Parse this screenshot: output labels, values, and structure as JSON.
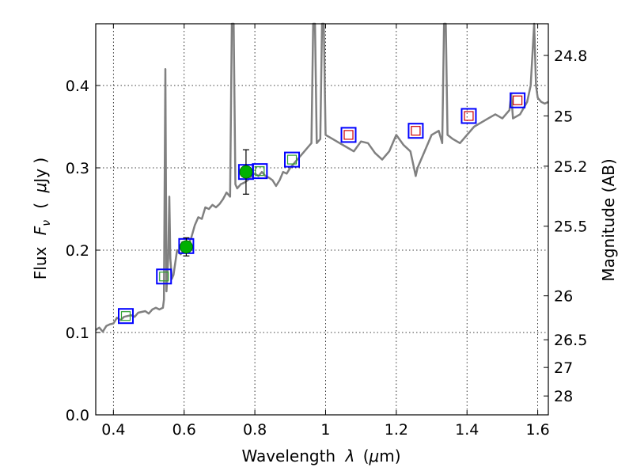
{
  "chart_data": {
    "type": "scatter",
    "xlabel_text": "Wavelength",
    "xlabel_symbol": "λ",
    "xlabel_unit_open": "(",
    "xlabel_unit_mu": "μ",
    "xlabel_unit_rest": "m)",
    "ylabel_text": "Flux",
    "ylabel_symbol": "F",
    "ylabel_subscript": "ν",
    "ylabel_unit_open": "(",
    "ylabel_unit_mu": "μ",
    "ylabel_unit_rest": "Jy )",
    "y2label": "Magnitude (AB)",
    "xlim": [
      0.35,
      1.63
    ],
    "ylim": [
      0.0,
      0.475
    ],
    "grid": true,
    "x_ticks": [
      {
        "value": 0.4,
        "label": "0.4"
      },
      {
        "value": 0.6,
        "label": "0.6"
      },
      {
        "value": 0.8,
        "label": "0.8"
      },
      {
        "value": 1.0,
        "label": "1"
      },
      {
        "value": 1.2,
        "label": "1.2"
      },
      {
        "value": 1.4,
        "label": "1.4"
      },
      {
        "value": 1.6,
        "label": "1.6"
      }
    ],
    "y_ticks": [
      {
        "value": 0.0,
        "label": "0.0"
      },
      {
        "value": 0.1,
        "label": "0.1"
      },
      {
        "value": 0.2,
        "label": "0.2"
      },
      {
        "value": 0.3,
        "label": "0.3"
      },
      {
        "value": 0.4,
        "label": "0.4"
      }
    ],
    "mag_ticks": [
      {
        "value": 24.8,
        "label": "24.8"
      },
      {
        "value": 25.0,
        "label": "25"
      },
      {
        "value": 25.2,
        "label": "25.2"
      },
      {
        "value": 25.5,
        "label": "25.5"
      },
      {
        "value": 26.0,
        "label": "26"
      },
      {
        "value": 26.5,
        "label": "26.5"
      },
      {
        "value": 27.0,
        "label": "27"
      },
      {
        "value": 28.0,
        "label": "28"
      }
    ],
    "series": [
      {
        "kind": "spectrum",
        "color": "#808080",
        "points": [
          [
            0.35,
            0.103
          ],
          [
            0.36,
            0.106
          ],
          [
            0.37,
            0.101
          ],
          [
            0.38,
            0.108
          ],
          [
            0.39,
            0.11
          ],
          [
            0.4,
            0.111
          ],
          [
            0.41,
            0.118
          ],
          [
            0.42,
            0.115
          ],
          [
            0.43,
            0.119
          ],
          [
            0.44,
            0.12
          ],
          [
            0.45,
            0.121
          ],
          [
            0.46,
            0.119
          ],
          [
            0.47,
            0.124
          ],
          [
            0.48,
            0.125
          ],
          [
            0.49,
            0.126
          ],
          [
            0.5,
            0.123
          ],
          [
            0.51,
            0.128
          ],
          [
            0.52,
            0.13
          ],
          [
            0.53,
            0.128
          ],
          [
            0.54,
            0.13
          ],
          [
            0.543,
            0.14
          ],
          [
            0.547,
            0.42
          ],
          [
            0.55,
            0.15
          ],
          [
            0.555,
            0.19
          ],
          [
            0.558,
            0.265
          ],
          [
            0.561,
            0.19
          ],
          [
            0.565,
            0.165
          ],
          [
            0.57,
            0.17
          ],
          [
            0.58,
            0.2
          ],
          [
            0.59,
            0.195
          ],
          [
            0.6,
            0.2
          ],
          [
            0.61,
            0.205
          ],
          [
            0.62,
            0.215
          ],
          [
            0.63,
            0.23
          ],
          [
            0.64,
            0.24
          ],
          [
            0.65,
            0.238
          ],
          [
            0.66,
            0.252
          ],
          [
            0.67,
            0.25
          ],
          [
            0.68,
            0.255
          ],
          [
            0.69,
            0.252
          ],
          [
            0.7,
            0.256
          ],
          [
            0.71,
            0.262
          ],
          [
            0.72,
            0.27
          ],
          [
            0.73,
            0.265
          ],
          [
            0.735,
            0.475
          ],
          [
            0.74,
            0.475
          ],
          [
            0.745,
            0.28
          ],
          [
            0.75,
            0.275
          ],
          [
            0.76,
            0.28
          ],
          [
            0.77,
            0.282
          ],
          [
            0.78,
            0.285
          ],
          [
            0.79,
            0.29
          ],
          [
            0.8,
            0.293
          ],
          [
            0.81,
            0.29
          ],
          [
            0.82,
            0.295
          ],
          [
            0.83,
            0.29
          ],
          [
            0.84,
            0.288
          ],
          [
            0.85,
            0.285
          ],
          [
            0.86,
            0.278
          ],
          [
            0.87,
            0.285
          ],
          [
            0.88,
            0.295
          ],
          [
            0.89,
            0.293
          ],
          [
            0.9,
            0.3
          ],
          [
            0.91,
            0.305
          ],
          [
            0.92,
            0.31
          ],
          [
            0.93,
            0.315
          ],
          [
            0.94,
            0.32
          ],
          [
            0.95,
            0.325
          ],
          [
            0.96,
            0.33
          ],
          [
            0.965,
            0.475
          ],
          [
            0.97,
            0.475
          ],
          [
            0.975,
            0.33
          ],
          [
            0.985,
            0.335
          ],
          [
            0.99,
            0.475
          ],
          [
            0.995,
            0.475
          ],
          [
            1.0,
            0.34
          ],
          [
            1.02,
            0.335
          ],
          [
            1.04,
            0.33
          ],
          [
            1.06,
            0.325
          ],
          [
            1.08,
            0.32
          ],
          [
            1.1,
            0.332
          ],
          [
            1.12,
            0.33
          ],
          [
            1.14,
            0.318
          ],
          [
            1.16,
            0.31
          ],
          [
            1.18,
            0.32
          ],
          [
            1.2,
            0.34
          ],
          [
            1.22,
            0.328
          ],
          [
            1.24,
            0.32
          ],
          [
            1.25,
            0.3
          ],
          [
            1.255,
            0.29
          ],
          [
            1.26,
            0.3
          ],
          [
            1.28,
            0.32
          ],
          [
            1.3,
            0.34
          ],
          [
            1.32,
            0.345
          ],
          [
            1.33,
            0.33
          ],
          [
            1.335,
            0.475
          ],
          [
            1.34,
            0.475
          ],
          [
            1.345,
            0.34
          ],
          [
            1.36,
            0.335
          ],
          [
            1.38,
            0.33
          ],
          [
            1.4,
            0.34
          ],
          [
            1.42,
            0.35
          ],
          [
            1.44,
            0.355
          ],
          [
            1.46,
            0.36
          ],
          [
            1.48,
            0.365
          ],
          [
            1.5,
            0.36
          ],
          [
            1.52,
            0.37
          ],
          [
            1.525,
            0.39
          ],
          [
            1.53,
            0.36
          ],
          [
            1.55,
            0.365
          ],
          [
            1.57,
            0.38
          ],
          [
            1.58,
            0.4
          ],
          [
            1.59,
            0.475
          ],
          [
            1.595,
            0.4
          ],
          [
            1.6,
            0.385
          ],
          [
            1.61,
            0.38
          ],
          [
            1.62,
            0.378
          ],
          [
            1.63,
            0.38
          ]
        ]
      },
      {
        "kind": "model-photometry",
        "edgecolor": "#0000ff",
        "points": [
          {
            "x": 0.435,
            "y": 0.12,
            "inner": "#2ca02c"
          },
          {
            "x": 0.543,
            "y": 0.168,
            "inner": "#2ca02c"
          },
          {
            "x": 0.606,
            "y": 0.205,
            "inner": "#2ca02c"
          },
          {
            "x": 0.775,
            "y": 0.295,
            "inner": "#2ca02c"
          },
          {
            "x": 0.814,
            "y": 0.296,
            "inner": "#2ca02c"
          },
          {
            "x": 0.905,
            "y": 0.31,
            "inner": "#2ca02c"
          },
          {
            "x": 1.065,
            "y": 0.34,
            "inner": "#cc0000"
          },
          {
            "x": 1.255,
            "y": 0.345,
            "inner": "#cc0000"
          },
          {
            "x": 1.405,
            "y": 0.363,
            "inner": "#cc0000"
          },
          {
            "x": 1.543,
            "y": 0.382,
            "inner": "#cc0000"
          }
        ]
      },
      {
        "kind": "observed",
        "color": "#00b000",
        "points": [
          {
            "x": 0.606,
            "y": 0.204,
            "yerr": 0.011
          },
          {
            "x": 0.775,
            "y": 0.295,
            "yerr": 0.027
          }
        ]
      }
    ]
  }
}
